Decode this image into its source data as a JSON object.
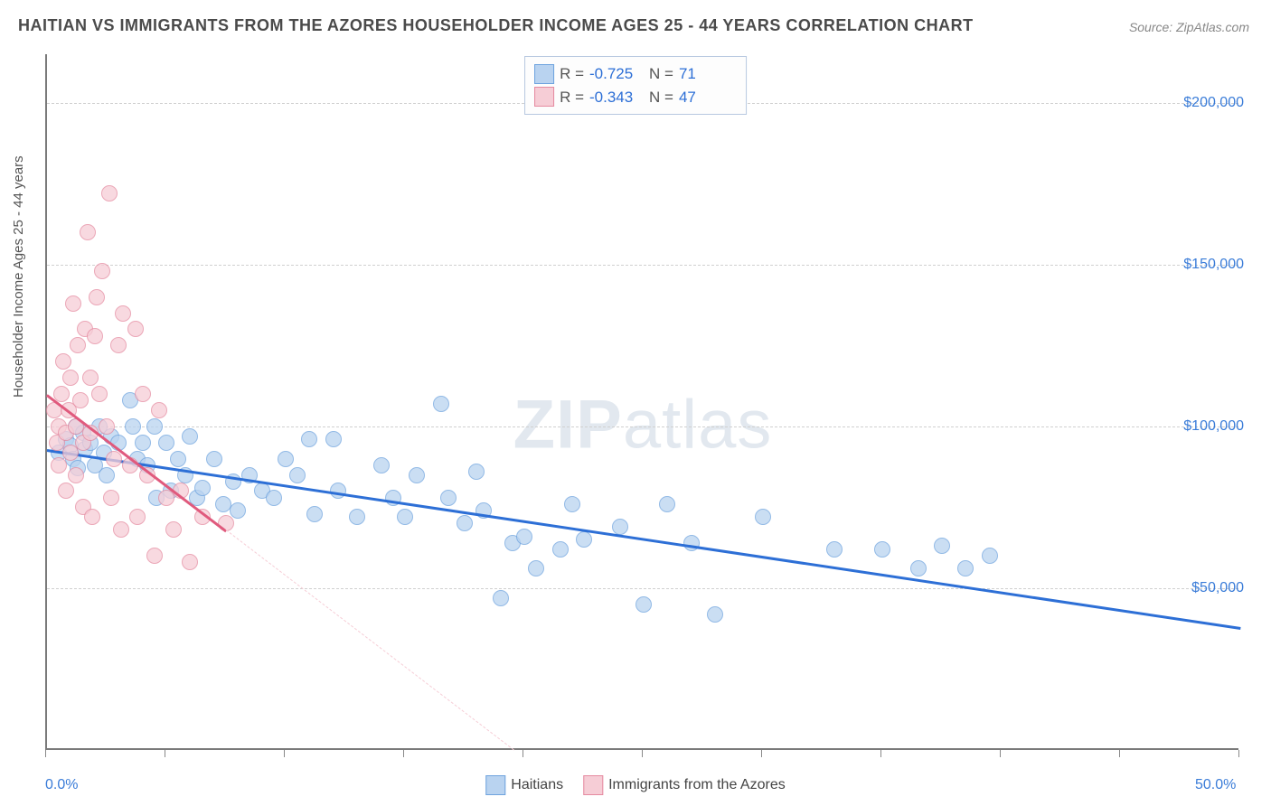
{
  "title": "HAITIAN VS IMMIGRANTS FROM THE AZORES HOUSEHOLDER INCOME AGES 25 - 44 YEARS CORRELATION CHART",
  "source": "Source: ZipAtlas.com",
  "watermark": {
    "bold": "ZIP",
    "light": "atlas"
  },
  "chart": {
    "type": "scatter",
    "ylabel": "Householder Income Ages 25 - 44 years",
    "xlim": [
      0,
      50
    ],
    "ylim": [
      0,
      215000
    ],
    "x_ticks": [
      0,
      5,
      10,
      15,
      20,
      25,
      30,
      35,
      40,
      45,
      50
    ],
    "x_tick_labels": {
      "0": "0.0%",
      "50": "50.0%"
    },
    "y_gridlines": [
      50000,
      100000,
      150000,
      200000
    ],
    "y_tick_labels": {
      "50000": "$50,000",
      "100000": "$100,000",
      "150000": "$150,000",
      "200000": "$200,000"
    },
    "grid_color": "#d0d0d0",
    "axis_color": "#7a7a7a",
    "background_color": "#ffffff",
    "point_radius": 9,
    "series": [
      {
        "name": "Haitians",
        "fill": "#b9d3f0",
        "stroke": "#6ea3de",
        "opacity": 0.75,
        "r": "-0.725",
        "n": "71",
        "reg": {
          "x1": 0,
          "y1": 93000,
          "x2": 50,
          "y2": 38000,
          "color": "#2d6fd6",
          "dash_extend": false
        },
        "points": [
          [
            0.5,
            92000
          ],
          [
            0.8,
            96000
          ],
          [
            1.0,
            94000
          ],
          [
            1.1,
            90000
          ],
          [
            1.2,
            100000
          ],
          [
            1.3,
            87000
          ],
          [
            1.5,
            98000
          ],
          [
            1.6,
            93000
          ],
          [
            1.8,
            95000
          ],
          [
            2.0,
            88000
          ],
          [
            2.2,
            100000
          ],
          [
            2.4,
            92000
          ],
          [
            2.5,
            85000
          ],
          [
            2.7,
            97000
          ],
          [
            3.0,
            95000
          ],
          [
            3.5,
            108000
          ],
          [
            3.6,
            100000
          ],
          [
            3.8,
            90000
          ],
          [
            4.0,
            95000
          ],
          [
            4.2,
            88000
          ],
          [
            4.5,
            100000
          ],
          [
            4.6,
            78000
          ],
          [
            5.0,
            95000
          ],
          [
            5.2,
            80000
          ],
          [
            5.5,
            90000
          ],
          [
            5.8,
            85000
          ],
          [
            6.0,
            97000
          ],
          [
            6.3,
            78000
          ],
          [
            6.5,
            81000
          ],
          [
            7.0,
            90000
          ],
          [
            7.4,
            76000
          ],
          [
            7.8,
            83000
          ],
          [
            8.0,
            74000
          ],
          [
            8.5,
            85000
          ],
          [
            9.0,
            80000
          ],
          [
            9.5,
            78000
          ],
          [
            10.0,
            90000
          ],
          [
            10.5,
            85000
          ],
          [
            11.0,
            96000
          ],
          [
            11.2,
            73000
          ],
          [
            12.0,
            96000
          ],
          [
            12.2,
            80000
          ],
          [
            13.0,
            72000
          ],
          [
            14.0,
            88000
          ],
          [
            14.5,
            78000
          ],
          [
            15.0,
            72000
          ],
          [
            15.5,
            85000
          ],
          [
            16.5,
            107000
          ],
          [
            16.8,
            78000
          ],
          [
            17.5,
            70000
          ],
          [
            18.0,
            86000
          ],
          [
            18.3,
            74000
          ],
          [
            19.0,
            47000
          ],
          [
            19.5,
            64000
          ],
          [
            20.0,
            66000
          ],
          [
            20.5,
            56000
          ],
          [
            21.5,
            62000
          ],
          [
            22.0,
            76000
          ],
          [
            22.5,
            65000
          ],
          [
            24.0,
            69000
          ],
          [
            25.0,
            45000
          ],
          [
            26.0,
            76000
          ],
          [
            27.0,
            64000
          ],
          [
            28.0,
            42000
          ],
          [
            30.0,
            72000
          ],
          [
            33.0,
            62000
          ],
          [
            35.0,
            62000
          ],
          [
            36.5,
            56000
          ],
          [
            37.5,
            63000
          ],
          [
            38.5,
            56000
          ],
          [
            39.5,
            60000
          ]
        ]
      },
      {
        "name": "Immigants from the Azores",
        "name_legend": "Immigrants from the Azores",
        "fill": "#f6cdd6",
        "stroke": "#e58aa0",
        "opacity": 0.75,
        "r": "-0.343",
        "n": "47",
        "reg": {
          "x1": 0,
          "y1": 110000,
          "x2": 7.5,
          "y2": 68000,
          "color": "#e05a7d",
          "dash_extend": true,
          "dash_x2": 24,
          "dash_y2": -25000
        },
        "points": [
          [
            0.3,
            105000
          ],
          [
            0.4,
            95000
          ],
          [
            0.5,
            100000
          ],
          [
            0.5,
            88000
          ],
          [
            0.6,
            110000
          ],
          [
            0.7,
            120000
          ],
          [
            0.8,
            98000
          ],
          [
            0.8,
            80000
          ],
          [
            0.9,
            105000
          ],
          [
            1.0,
            115000
          ],
          [
            1.0,
            92000
          ],
          [
            1.1,
            138000
          ],
          [
            1.2,
            100000
          ],
          [
            1.2,
            85000
          ],
          [
            1.3,
            125000
          ],
          [
            1.4,
            108000
          ],
          [
            1.5,
            95000
          ],
          [
            1.5,
            75000
          ],
          [
            1.6,
            130000
          ],
          [
            1.7,
            160000
          ],
          [
            1.8,
            115000
          ],
          [
            1.8,
            98000
          ],
          [
            1.9,
            72000
          ],
          [
            2.0,
            128000
          ],
          [
            2.1,
            140000
          ],
          [
            2.2,
            110000
          ],
          [
            2.3,
            148000
          ],
          [
            2.5,
            100000
          ],
          [
            2.6,
            172000
          ],
          [
            2.7,
            78000
          ],
          [
            2.8,
            90000
          ],
          [
            3.0,
            125000
          ],
          [
            3.1,
            68000
          ],
          [
            3.2,
            135000
          ],
          [
            3.5,
            88000
          ],
          [
            3.7,
            130000
          ],
          [
            3.8,
            72000
          ],
          [
            4.0,
            110000
          ],
          [
            4.2,
            85000
          ],
          [
            4.5,
            60000
          ],
          [
            4.7,
            105000
          ],
          [
            5.0,
            78000
          ],
          [
            5.3,
            68000
          ],
          [
            5.6,
            80000
          ],
          [
            6.0,
            58000
          ],
          [
            6.5,
            72000
          ],
          [
            7.5,
            70000
          ]
        ]
      }
    ],
    "legend_top": {
      "r_label": "R =",
      "n_label": "N ="
    },
    "legend_bottom": [
      {
        "label": "Haitians",
        "fill": "#b9d3f0",
        "stroke": "#6ea3de"
      },
      {
        "label": "Immigrants from the Azores",
        "fill": "#f6cdd6",
        "stroke": "#e58aa0"
      }
    ]
  }
}
